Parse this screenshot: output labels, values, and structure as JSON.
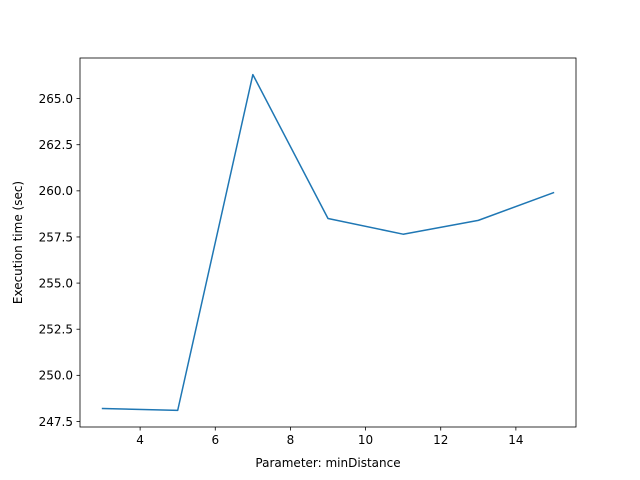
{
  "chart_data": {
    "type": "line",
    "title": "",
    "xlabel": "Parameter: minDistance",
    "ylabel": "Execution time (sec)",
    "xlim": [
      2.4,
      15.6
    ],
    "ylim": [
      247.2,
      267.2
    ],
    "x_ticks": [
      4,
      6,
      8,
      10,
      12,
      14
    ],
    "y_ticks": [
      247.5,
      250.0,
      252.5,
      255.0,
      257.5,
      260.0,
      262.5,
      265.0
    ],
    "grid": false,
    "legend": "none",
    "series": [
      {
        "color": "#1f77b4",
        "x": [
          3,
          5,
          7,
          9,
          11,
          13,
          15
        ],
        "y": [
          248.2,
          248.1,
          266.3,
          258.5,
          257.65,
          258.4,
          259.9
        ]
      }
    ]
  }
}
